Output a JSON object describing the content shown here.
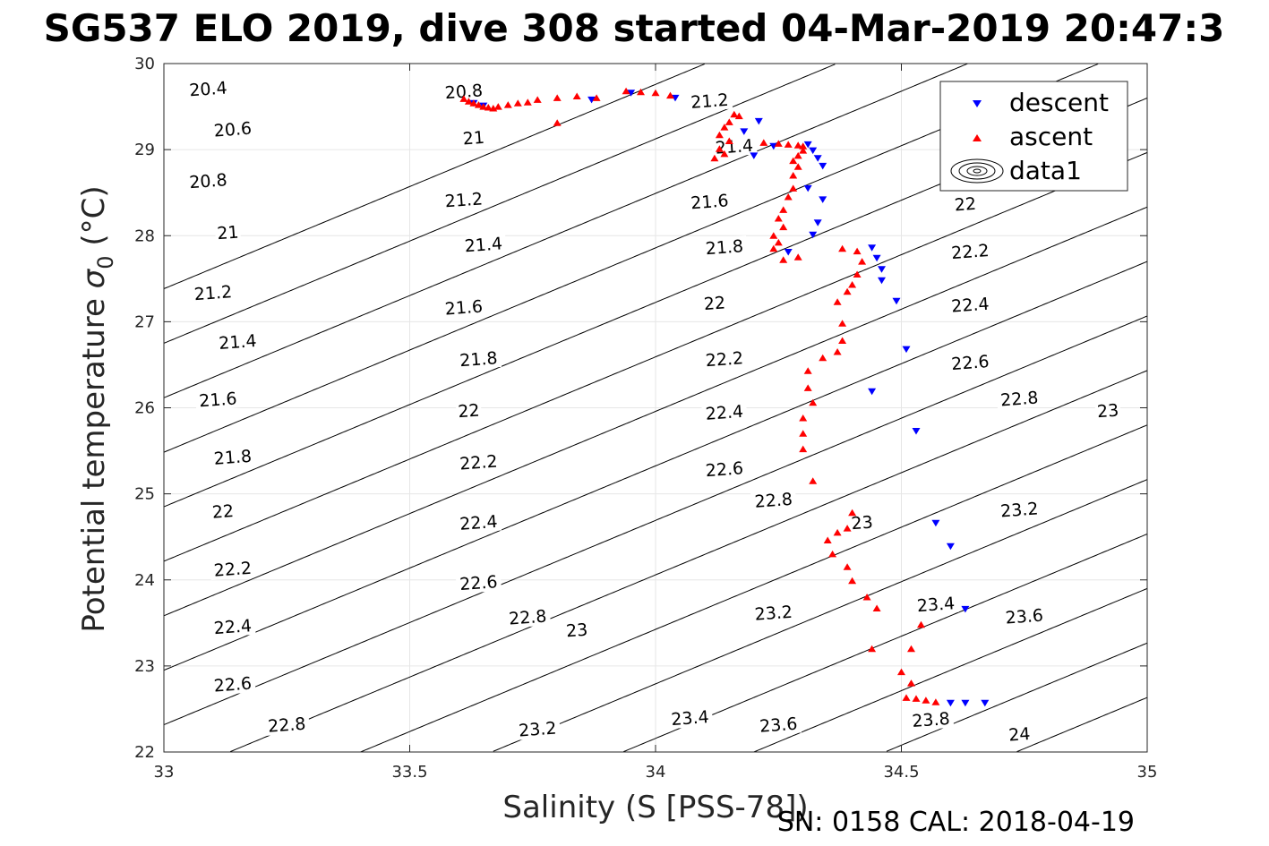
{
  "chart_data": {
    "type": "scatter",
    "title": "SG537 ELO 2019, dive 308 started 04-Mar-2019 20:47:3",
    "xlabel": "Salinity (S [PSS-78])",
    "ylabel_main": "Potential temperature ",
    "ylabel_sym": "σ",
    "ylabel_sub": "0",
    "ylabel_unit": " (°C)",
    "footer": "SN: 0158  CAL: 2018-04-19",
    "xlim": [
      33,
      35
    ],
    "ylim": [
      22,
      30
    ],
    "xticks": [
      33,
      33.5,
      34,
      34.5,
      35
    ],
    "yticks": [
      22,
      23,
      24,
      25,
      26,
      27,
      28,
      29,
      30
    ],
    "xtick_labels": [
      "33",
      "33.5",
      "34",
      "34.5",
      "35"
    ],
    "ytick_labels": [
      "22",
      "23",
      "24",
      "25",
      "26",
      "27",
      "28",
      "29",
      "30"
    ],
    "grid": true,
    "legend_position": "top-right",
    "legend": [
      "descent",
      "ascent",
      "data1"
    ],
    "colors": {
      "descent": "#0000ff",
      "ascent": "#ff0000",
      "contour": "#000000"
    },
    "contours": {
      "levels": [
        20.4,
        20.6,
        20.8,
        21,
        21.2,
        21.4,
        21.6,
        21.8,
        22,
        22.2,
        22.4,
        22.6,
        22.8,
        23,
        23.2,
        23.4,
        23.6,
        23.8,
        24
      ],
      "label_points": [
        {
          "text": "20.4",
          "s": 33.09,
          "t": 29.71
        },
        {
          "text": "20.6",
          "s": 33.14,
          "t": 29.24
        },
        {
          "text": "20.8",
          "s": 33.09,
          "t": 28.64
        },
        {
          "text": "21",
          "s": 33.13,
          "t": 28.04
        },
        {
          "text": "21.2",
          "s": 33.1,
          "t": 27.34
        },
        {
          "text": "21.4",
          "s": 33.15,
          "t": 26.77
        },
        {
          "text": "21.6",
          "s": 33.11,
          "t": 26.1
        },
        {
          "text": "21.8",
          "s": 33.14,
          "t": 25.43
        },
        {
          "text": "22",
          "s": 33.12,
          "t": 24.8
        },
        {
          "text": "22.2",
          "s": 33.14,
          "t": 24.13
        },
        {
          "text": "22.4",
          "s": 33.14,
          "t": 23.46
        },
        {
          "text": "22.6",
          "s": 33.14,
          "t": 22.79
        },
        {
          "text": "22.8",
          "s": 33.25,
          "t": 22.32
        },
        {
          "text": "20.8",
          "s": 33.61,
          "t": 29.68
        },
        {
          "text": "21",
          "s": 33.63,
          "t": 29.14
        },
        {
          "text": "21.2",
          "s": 33.61,
          "t": 28.42
        },
        {
          "text": "21.4",
          "s": 33.65,
          "t": 27.9
        },
        {
          "text": "21.6",
          "s": 33.61,
          "t": 27.17
        },
        {
          "text": "21.8",
          "s": 33.64,
          "t": 26.57
        },
        {
          "text": "22",
          "s": 33.62,
          "t": 25.97
        },
        {
          "text": "22.2",
          "s": 33.64,
          "t": 25.37
        },
        {
          "text": "22.4",
          "s": 33.64,
          "t": 24.67
        },
        {
          "text": "22.6",
          "s": 33.64,
          "t": 23.97
        },
        {
          "text": "22.8",
          "s": 33.74,
          "t": 23.57
        },
        {
          "text": "23",
          "s": 33.84,
          "t": 23.42
        },
        {
          "text": "23.2",
          "s": 33.76,
          "t": 22.27
        },
        {
          "text": "21.2",
          "s": 34.11,
          "t": 29.57
        },
        {
          "text": "21.4",
          "s": 34.16,
          "t": 29.04
        },
        {
          "text": "21.6",
          "s": 34.11,
          "t": 28.4
        },
        {
          "text": "21.8",
          "s": 34.14,
          "t": 27.87
        },
        {
          "text": "22",
          "s": 34.12,
          "t": 27.22
        },
        {
          "text": "22.2",
          "s": 34.14,
          "t": 26.57
        },
        {
          "text": "22.4",
          "s": 34.14,
          "t": 25.95
        },
        {
          "text": "22.6",
          "s": 34.14,
          "t": 25.29
        },
        {
          "text": "22.8",
          "s": 34.24,
          "t": 24.93
        },
        {
          "text": "23",
          "s": 34.42,
          "t": 24.67
        },
        {
          "text": "23.2",
          "s": 34.24,
          "t": 23.62
        },
        {
          "text": "23.4",
          "s": 34.07,
          "t": 22.4
        },
        {
          "text": "23.6",
          "s": 34.25,
          "t": 22.32
        },
        {
          "text": "22",
          "s": 34.63,
          "t": 28.37
        },
        {
          "text": "22.2",
          "s": 34.64,
          "t": 27.82
        },
        {
          "text": "22.4",
          "s": 34.64,
          "t": 27.2
        },
        {
          "text": "22.6",
          "s": 34.64,
          "t": 26.53
        },
        {
          "text": "22.8",
          "s": 34.74,
          "t": 26.11
        },
        {
          "text": "23",
          "s": 34.92,
          "t": 25.97
        },
        {
          "text": "23.2",
          "s": 34.74,
          "t": 24.82
        },
        {
          "text": "23.4",
          "s": 34.57,
          "t": 23.72
        },
        {
          "text": "23.6",
          "s": 34.75,
          "t": 23.58
        },
        {
          "text": "23.8",
          "s": 34.56,
          "t": 22.38
        },
        {
          "text": "24",
          "s": 34.74,
          "t": 22.21
        }
      ]
    },
    "series": [
      {
        "name": "descent",
        "marker": "triangle-down",
        "points": [
          [
            33.63,
            29.54
          ],
          [
            33.65,
            29.51
          ],
          [
            33.87,
            29.58
          ],
          [
            33.95,
            29.66
          ],
          [
            34.04,
            29.6
          ],
          [
            34.18,
            29.21
          ],
          [
            34.21,
            29.33
          ],
          [
            34.24,
            29.04
          ],
          [
            34.2,
            28.93
          ],
          [
            34.31,
            29.06
          ],
          [
            34.32,
            28.99
          ],
          [
            34.33,
            28.9
          ],
          [
            34.34,
            28.81
          ],
          [
            34.31,
            28.55
          ],
          [
            34.34,
            28.42
          ],
          [
            34.33,
            28.15
          ],
          [
            34.32,
            28.01
          ],
          [
            34.27,
            27.81
          ],
          [
            34.44,
            27.86
          ],
          [
            34.45,
            27.74
          ],
          [
            34.46,
            27.61
          ],
          [
            34.46,
            27.48
          ],
          [
            34.49,
            27.24
          ],
          [
            34.51,
            26.68
          ],
          [
            34.44,
            26.19
          ],
          [
            34.53,
            25.73
          ],
          [
            34.57,
            24.66
          ],
          [
            34.6,
            24.39
          ],
          [
            34.63,
            23.66
          ],
          [
            34.6,
            22.57
          ],
          [
            34.63,
            22.57
          ],
          [
            34.67,
            22.57
          ]
        ]
      },
      {
        "name": "ascent",
        "marker": "triangle-up",
        "points": [
          [
            33.61,
            29.59
          ],
          [
            33.62,
            29.56
          ],
          [
            33.63,
            29.54
          ],
          [
            33.64,
            29.52
          ],
          [
            33.65,
            29.5
          ],
          [
            33.66,
            29.49
          ],
          [
            33.67,
            29.48
          ],
          [
            33.68,
            29.5
          ],
          [
            33.7,
            29.52
          ],
          [
            33.72,
            29.54
          ],
          [
            33.74,
            29.55
          ],
          [
            33.76,
            29.58
          ],
          [
            33.8,
            29.6
          ],
          [
            33.8,
            29.31
          ],
          [
            33.84,
            29.62
          ],
          [
            33.88,
            29.6
          ],
          [
            33.94,
            29.68
          ],
          [
            33.97,
            29.67
          ],
          [
            34.0,
            29.66
          ],
          [
            34.03,
            29.63
          ],
          [
            34.16,
            29.41
          ],
          [
            34.17,
            29.39
          ],
          [
            34.15,
            29.32
          ],
          [
            34.14,
            29.26
          ],
          [
            34.13,
            29.17
          ],
          [
            34.15,
            29.1
          ],
          [
            34.13,
            29.01
          ],
          [
            34.14,
            28.95
          ],
          [
            34.12,
            28.9
          ],
          [
            34.22,
            29.08
          ],
          [
            34.25,
            29.07
          ],
          [
            34.27,
            29.06
          ],
          [
            34.29,
            29.05
          ],
          [
            34.3,
            29.04
          ],
          [
            34.3,
            28.99
          ],
          [
            34.29,
            28.93
          ],
          [
            34.28,
            28.87
          ],
          [
            34.29,
            28.8
          ],
          [
            34.28,
            28.7
          ],
          [
            34.28,
            28.55
          ],
          [
            34.27,
            28.45
          ],
          [
            34.26,
            28.3
          ],
          [
            34.25,
            28.2
          ],
          [
            34.26,
            28.1
          ],
          [
            34.24,
            28.0
          ],
          [
            34.25,
            27.92
          ],
          [
            34.24,
            27.85
          ],
          [
            34.26,
            27.72
          ],
          [
            34.29,
            27.75
          ],
          [
            34.38,
            27.85
          ],
          [
            34.41,
            27.82
          ],
          [
            34.42,
            27.7
          ],
          [
            34.41,
            27.55
          ],
          [
            34.4,
            27.43
          ],
          [
            34.39,
            27.35
          ],
          [
            34.37,
            27.23
          ],
          [
            34.38,
            26.98
          ],
          [
            34.38,
            26.78
          ],
          [
            34.37,
            26.65
          ],
          [
            34.34,
            26.58
          ],
          [
            34.31,
            26.43
          ],
          [
            34.31,
            26.23
          ],
          [
            34.32,
            26.06
          ],
          [
            34.3,
            25.88
          ],
          [
            34.3,
            25.7
          ],
          [
            34.3,
            25.52
          ],
          [
            34.32,
            25.15
          ],
          [
            34.4,
            24.78
          ],
          [
            34.39,
            24.6
          ],
          [
            34.37,
            24.55
          ],
          [
            34.35,
            24.46
          ],
          [
            34.36,
            24.3
          ],
          [
            34.39,
            24.15
          ],
          [
            34.4,
            23.99
          ],
          [
            34.43,
            23.8
          ],
          [
            34.45,
            23.67
          ],
          [
            34.44,
            23.2
          ],
          [
            34.5,
            22.93
          ],
          [
            34.52,
            22.8
          ],
          [
            34.51,
            22.63
          ],
          [
            34.53,
            22.62
          ],
          [
            34.55,
            22.6
          ],
          [
            34.57,
            22.58
          ],
          [
            34.52,
            23.2
          ],
          [
            34.54,
            23.48
          ]
        ]
      }
    ]
  }
}
